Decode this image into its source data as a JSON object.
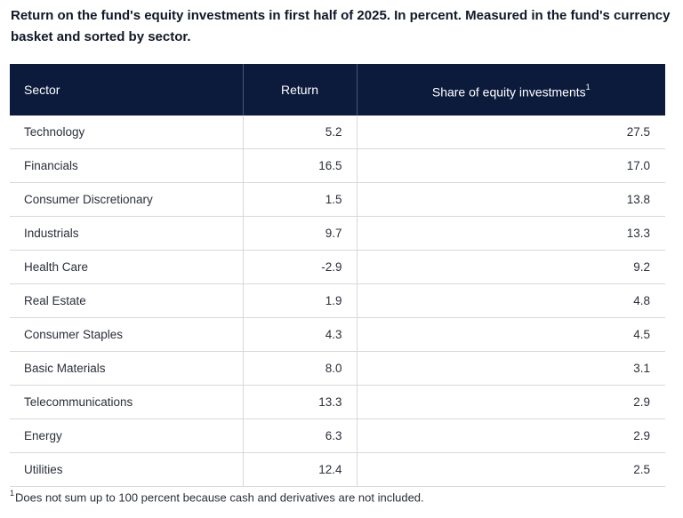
{
  "title": "Return on the fund's equity investments in first half of 2025. In percent. Measured in the fund's currency basket and sorted by sector.",
  "table": {
    "headers": {
      "sector": "Sector",
      "return": "Return",
      "share": "Share of equity investments",
      "share_sup": "1"
    },
    "rows": [
      {
        "sector": "Technology",
        "return": "5.2",
        "share": "27.5"
      },
      {
        "sector": "Financials",
        "return": "16.5",
        "share": "17.0"
      },
      {
        "sector": "Consumer Discretionary",
        "return": "1.5",
        "share": "13.8"
      },
      {
        "sector": "Industrials",
        "return": "9.7",
        "share": "13.3"
      },
      {
        "sector": "Health Care",
        "return": "-2.9",
        "share": "9.2"
      },
      {
        "sector": "Real Estate",
        "return": "1.9",
        "share": "4.8"
      },
      {
        "sector": "Consumer Staples",
        "return": "4.3",
        "share": "4.5"
      },
      {
        "sector": "Basic Materials",
        "return": "8.0",
        "share": "3.1"
      },
      {
        "sector": "Telecommunications",
        "return": "13.3",
        "share": "2.9"
      },
      {
        "sector": "Energy",
        "return": "6.3",
        "share": "2.9"
      },
      {
        "sector": "Utilities",
        "return": "12.4",
        "share": "2.5"
      }
    ]
  },
  "footnote": {
    "mark": "1",
    "text": "Does not sum up to 100 percent because cash and derivatives are not included."
  },
  "colors": {
    "header_bg": "#0c1a3c",
    "header_text": "#ffffff",
    "row_border": "#d6d8dc"
  }
}
